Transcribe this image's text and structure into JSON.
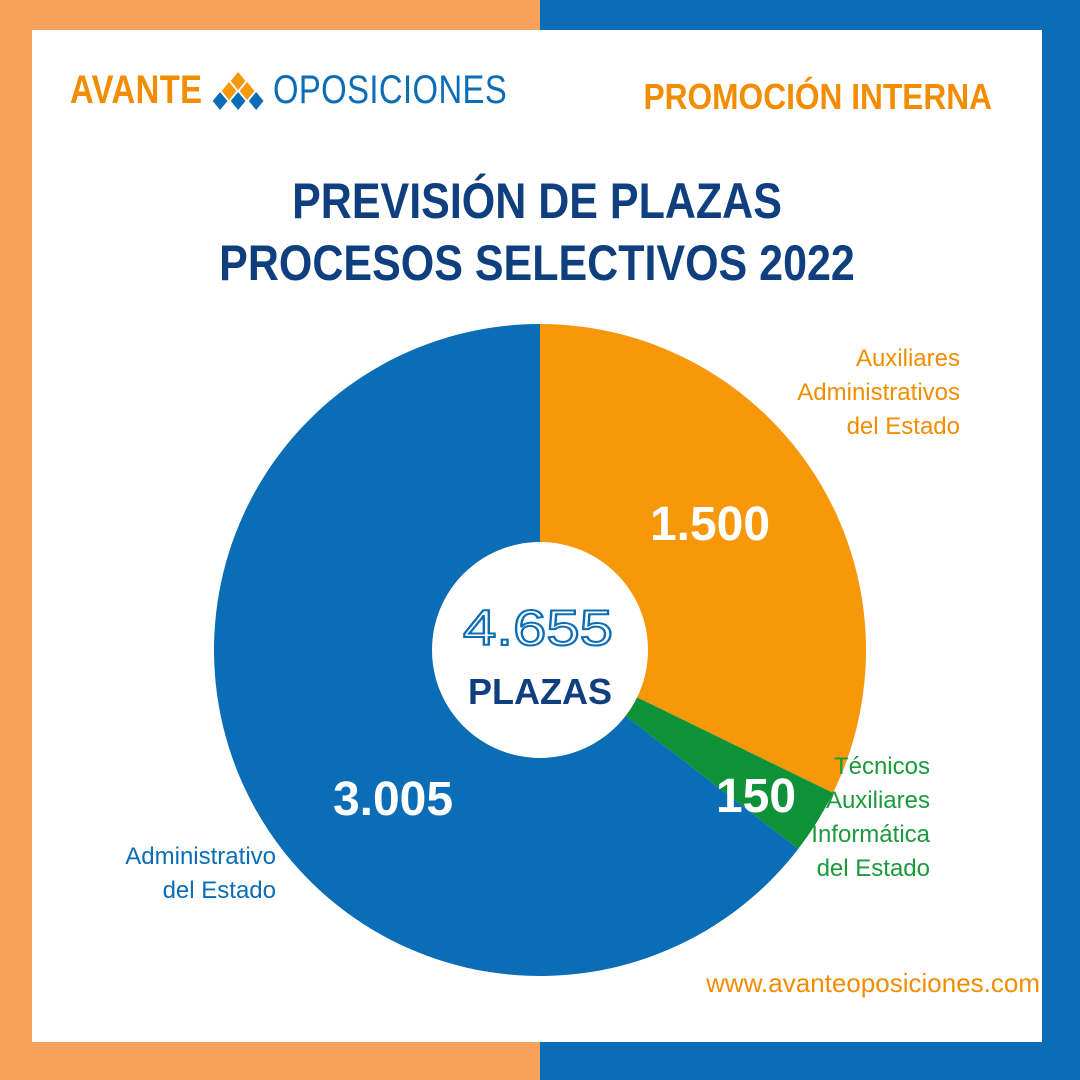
{
  "header": {
    "logo_part1": "AVANTE",
    "logo_part2": "OPOSICIONES",
    "logo_icon": "diamond-grid-logo-icon",
    "promo": "PROMOCIÓN INTERNA"
  },
  "title_lines": [
    "PREVISIÓN DE PLAZAS",
    "PROCESOS SELECTIVOS 2022"
  ],
  "colors": {
    "orange": "#F7970A",
    "green": "#0E9238",
    "blue": "#0A6DB5",
    "navy": "#0F3F7E"
  },
  "chart_data": {
    "type": "pie",
    "title": "PREVISIÓN DE PLAZAS PROCESOS SELECTIVOS 2022",
    "center_total": "4.655",
    "center_unit": "PLAZAS",
    "slices": [
      {
        "label_lines": [
          "Auxiliares",
          "Administrativos",
          "del Estado"
        ],
        "value": 1500,
        "display": "1.500",
        "color": "#F7970A"
      },
      {
        "label_lines": [
          "Técnicos",
          "Auxiliares",
          "Informática",
          "del Estado"
        ],
        "value": 150,
        "display": "150",
        "color": "#0E9238"
      },
      {
        "label_lines": [
          "Administrativo",
          "del Estado"
        ],
        "value": 3005,
        "display": "3.005",
        "color": "#0A6DB5"
      }
    ]
  },
  "footer": {
    "url": "www.avanteoposiciones.com"
  }
}
